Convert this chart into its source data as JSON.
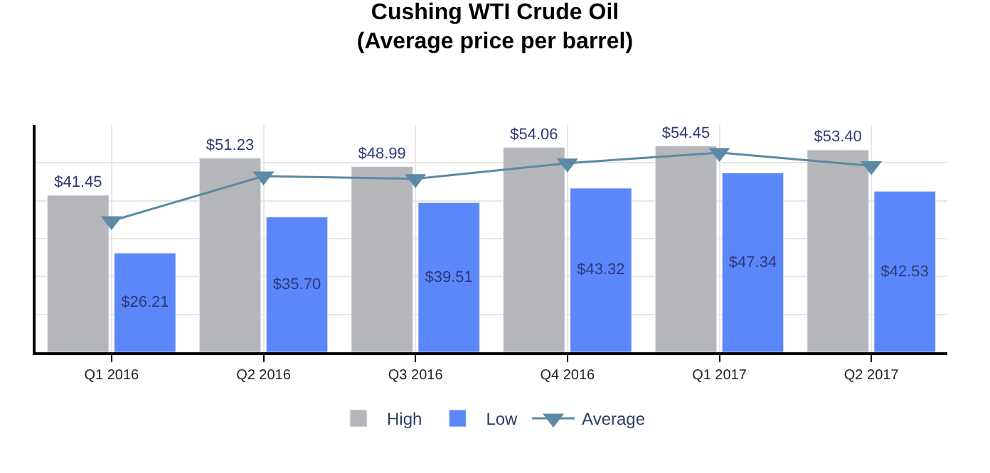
{
  "chart_data": {
    "type": "bar",
    "title": "Cushing WTI Crude Oil\n(Average price per barrel)",
    "categories": [
      "Q1 2016",
      "Q2 2016",
      "Q3 2016",
      "Q4 2016",
      "Q1 2017",
      "Q2 2017"
    ],
    "series": [
      {
        "name": "High",
        "color": "#b5b6ba",
        "values": [
          41.45,
          51.23,
          48.99,
          54.06,
          54.45,
          53.4
        ],
        "value_labels": [
          "$41.45",
          "$51.23",
          "$48.99",
          "$54.06",
          "$54.45",
          "$53.40"
        ]
      },
      {
        "name": "Low",
        "color": "#5b87fb",
        "values": [
          26.21,
          35.7,
          39.51,
          43.32,
          47.34,
          42.53
        ],
        "value_labels": [
          "$26.21",
          "$35.70",
          "$39.51",
          "$43.32",
          "$47.34",
          "$42.53"
        ]
      },
      {
        "name": "Average",
        "type": "line",
        "color": "#5b89a6",
        "marker": "triangle",
        "values": [
          34.7,
          46.5,
          45.8,
          49.9,
          52.7,
          49.2
        ]
      }
    ],
    "ylim": [
      0,
      60
    ],
    "yticks": [
      {
        "value": 0,
        "label": null
      },
      {
        "value": 10,
        "label": null
      },
      {
        "value": 20,
        "label": null
      },
      {
        "value": 30,
        "label": null
      },
      {
        "value": 40,
        "label": null
      },
      {
        "value": 50,
        "label": null
      }
    ],
    "tick_labels": "x",
    "grid": true,
    "legend": "bottom"
  }
}
